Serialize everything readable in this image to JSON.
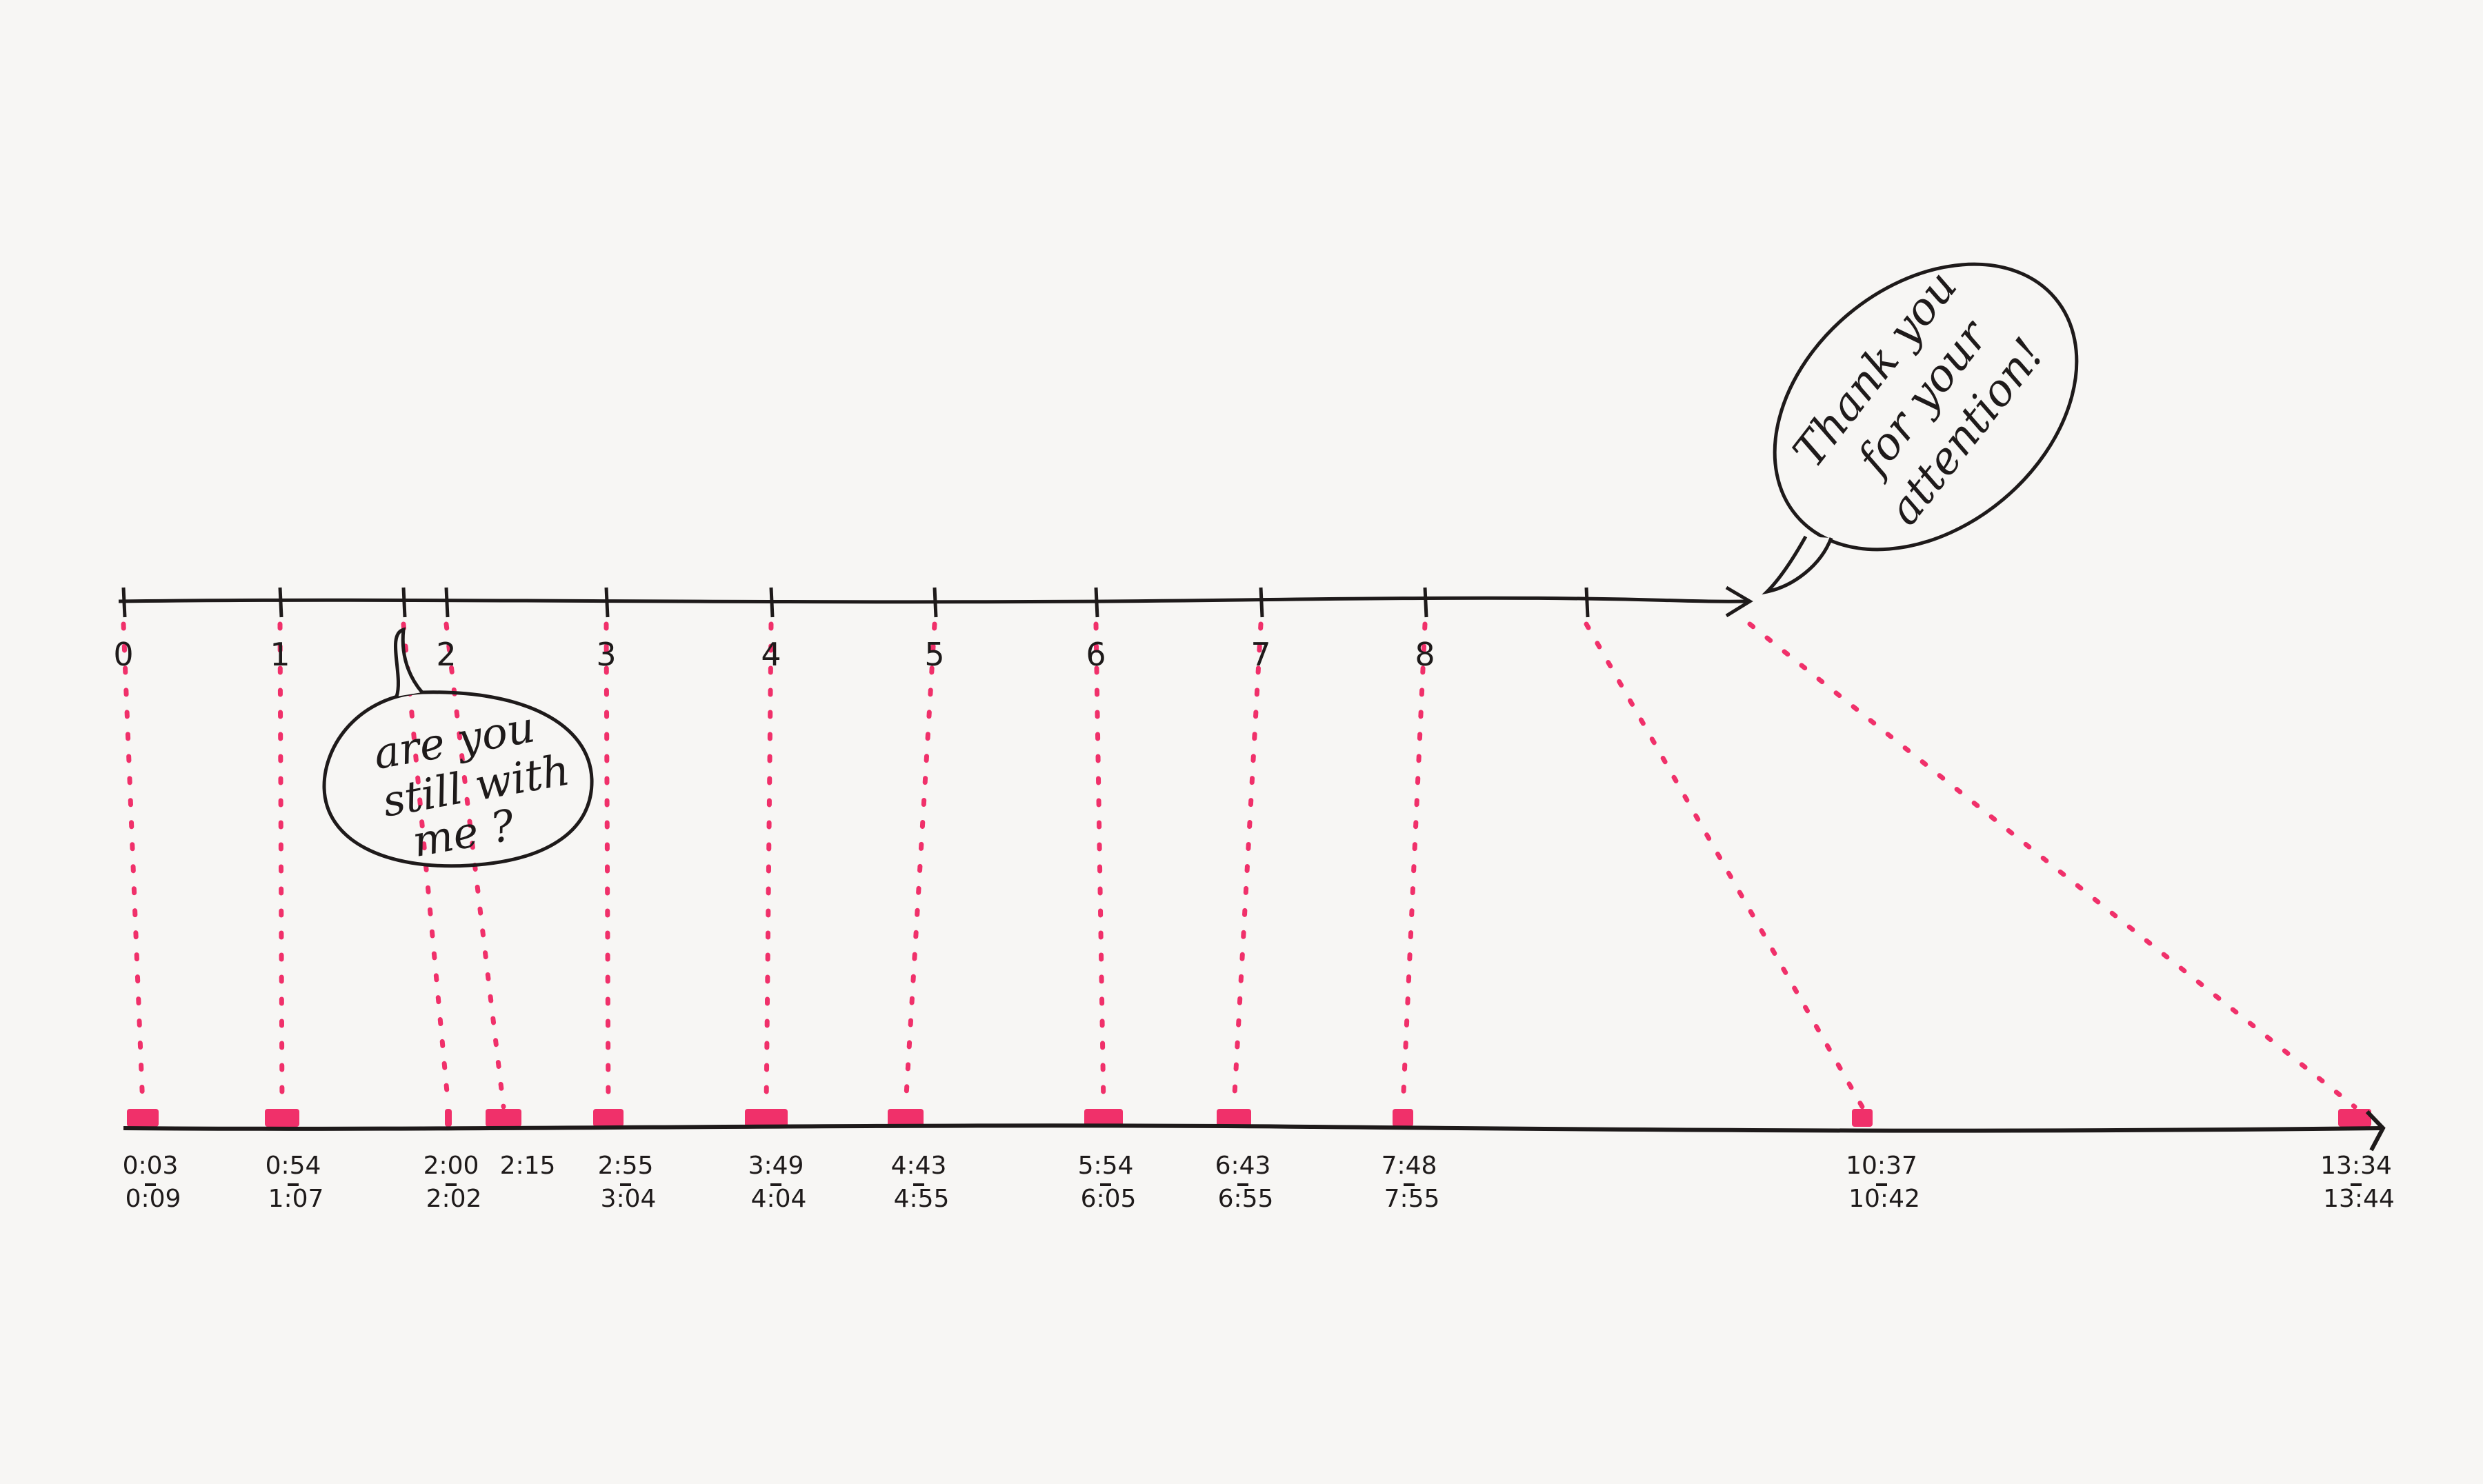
{
  "colors": {
    "ink": "#1e1a1a",
    "marker": "#f0306a",
    "paper": "#f7f6f4"
  },
  "top_axis": {
    "tick_labels": [
      "0",
      "",
      "",
      "2",
      "3",
      "4",
      "5",
      "6",
      "7",
      "8",
      ""
    ],
    "tick_label_1": "1"
  },
  "bottom_axis": {
    "time_labels": [
      {
        "start": "0:03",
        "end": "0:09"
      },
      {
        "start": "0:54",
        "end": "1:07"
      },
      {
        "start": "2:00",
        "end": "2:02"
      },
      {
        "start": "2:15",
        "end": ""
      },
      {
        "start": "2:55",
        "end": "3:04"
      },
      {
        "start": "3:49",
        "end": "4:04"
      },
      {
        "start": "4:43",
        "end": "4:55"
      },
      {
        "start": "5:54",
        "end": "6:05"
      },
      {
        "start": "6:43",
        "end": "6:55"
      },
      {
        "start": "7:48",
        "end": "7:55"
      },
      {
        "start": "10:37",
        "end": "10:42"
      },
      {
        "start": "13:34",
        "end": "13:44"
      }
    ]
  },
  "bubbles": {
    "still_with_me": [
      "are you",
      "still with",
      "me ?"
    ],
    "thank_you": [
      "Thank you",
      "for your",
      "attention!"
    ]
  }
}
